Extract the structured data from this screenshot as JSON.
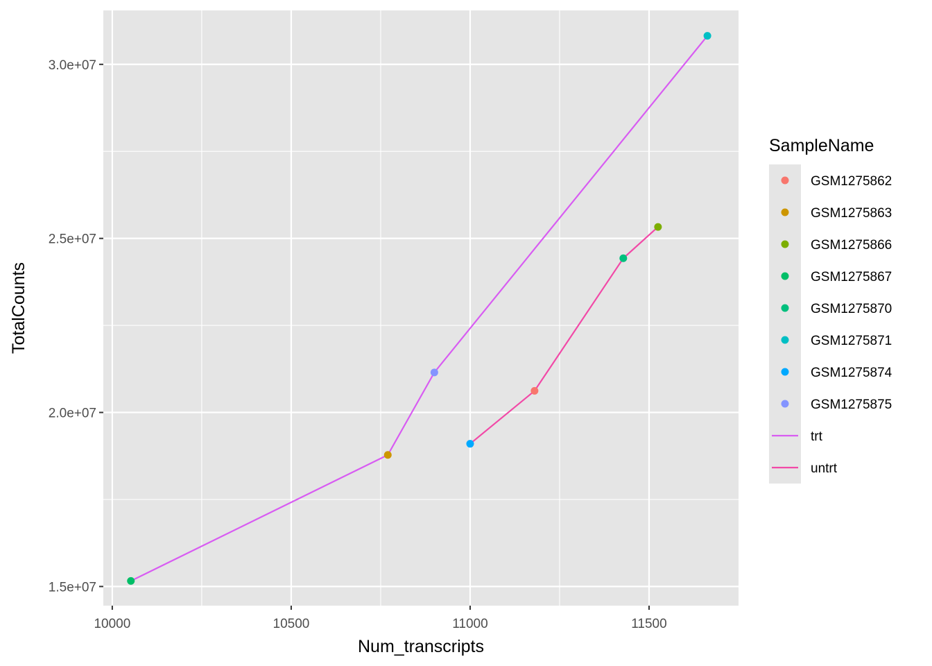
{
  "chart_data": {
    "type": "scatter",
    "xlabel": "Num_transcripts",
    "ylabel": "TotalCounts",
    "xlim": [
      9975,
      11750
    ],
    "ylim": [
      14450000,
      31550000
    ],
    "x_ticks": [
      10000,
      10500,
      11000,
      11500
    ],
    "x_tick_labels": [
      "10000",
      "10500",
      "11000",
      "11500"
    ],
    "y_ticks": [
      15000000,
      20000000,
      25000000,
      30000000
    ],
    "y_tick_labels": [
      "1.5e+07",
      "2.0e+07",
      "2.5e+07",
      "3.0e+07"
    ],
    "x_minor_ticks": [
      10250,
      10750,
      11250
    ],
    "y_minor_ticks": [
      17500000,
      22500000,
      27500000
    ],
    "grid": true,
    "legend_position": "right",
    "legend_title": "SampleName",
    "points": [
      {
        "name": "GSM1275862",
        "x": 11180,
        "y": 20620000,
        "color": "#F8766D"
      },
      {
        "name": "GSM1275863",
        "x": 10770,
        "y": 18780000,
        "color": "#CD9600"
      },
      {
        "name": "GSM1275866",
        "x": 11525,
        "y": 25330000,
        "color": "#7CAE00"
      },
      {
        "name": "GSM1275867",
        "x": 10052,
        "y": 15160000,
        "color": "#00BE67"
      },
      {
        "name": "GSM1275870",
        "x": 11428,
        "y": 24430000,
        "color": "#00BF7D"
      },
      {
        "name": "GSM1275871",
        "x": 11663,
        "y": 30820000,
        "color": "#00BFC4"
      },
      {
        "name": "GSM1275874",
        "x": 11000,
        "y": 19100000,
        "color": "#00A9FF"
      },
      {
        "name": "GSM1275875",
        "x": 10900,
        "y": 21150000,
        "color": "#8494FF"
      }
    ],
    "series": [
      {
        "name": "trt",
        "color": "#D85CF2",
        "x": [
          10052,
          10770,
          10900,
          11663
        ],
        "y": [
          15160000,
          18780000,
          21150000,
          30820000
        ]
      },
      {
        "name": "untrt",
        "color": "#F249A7",
        "x": [
          11000,
          11180,
          11428,
          11525
        ],
        "y": [
          19100000,
          20620000,
          24430000,
          25330000
        ]
      }
    ]
  },
  "colors": {
    "panel_background": "#E5E5E5",
    "grid_major": "#FFFFFF",
    "legend_key_background": "#E5E5E5"
  }
}
